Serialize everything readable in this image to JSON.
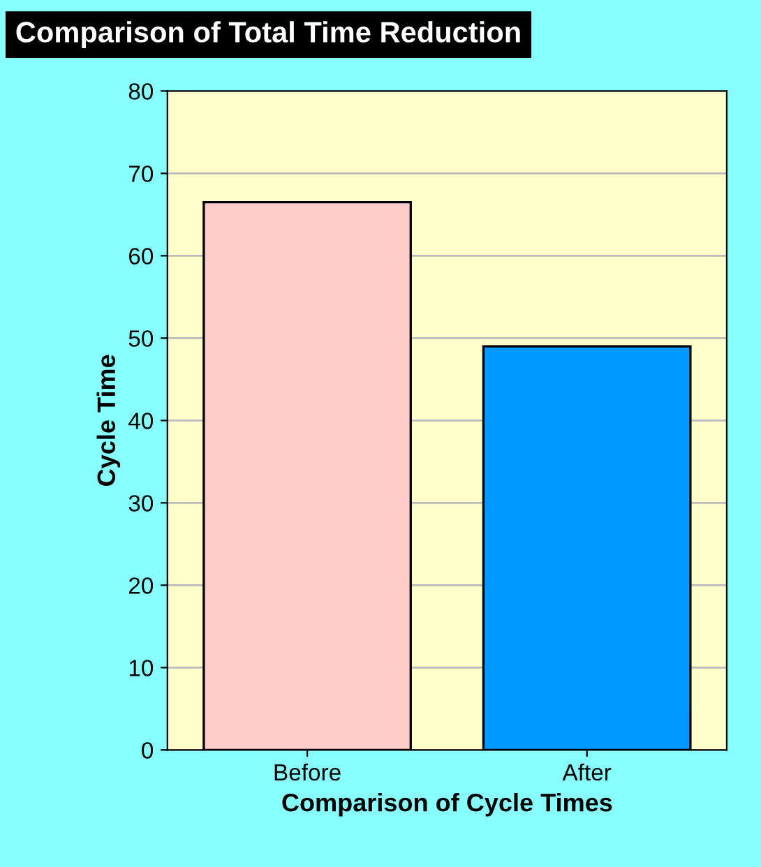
{
  "chart_data": {
    "type": "bar",
    "title": "Comparison of Total Time Reduction",
    "xlabel": "Comparison of Cycle Times",
    "ylabel": "Cycle Time",
    "categories": [
      "Before",
      "After"
    ],
    "values": [
      66.5,
      49
    ],
    "colors": [
      "#ffcccc",
      "#0099ff"
    ],
    "ylim": [
      0,
      80
    ],
    "yticks": [
      0,
      10,
      20,
      30,
      40,
      50,
      60,
      70,
      80
    ],
    "grid": "y"
  }
}
